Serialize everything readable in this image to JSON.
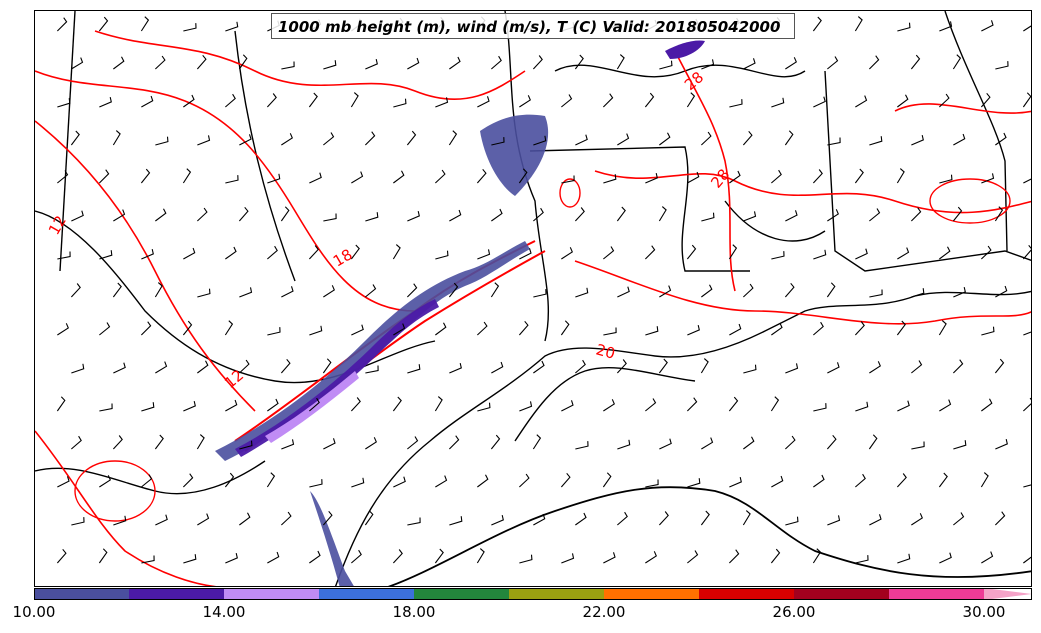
{
  "title": "1000 mb height (m), wind (m/s), T (C) Valid: 201805042000",
  "colorbar": {
    "colors": [
      "#4a4f9e",
      "#4b1aa6",
      "#c08cf5",
      "#3c70dc",
      "#23863c",
      "#9aa011",
      "#ff7000",
      "#d80000",
      "#a2001e",
      "#ee3b96",
      "#f5a3c8"
    ],
    "tick_labels": [
      "10.00",
      "14.00",
      "18.00",
      "22.00",
      "26.00",
      "30.00"
    ]
  },
  "contour_labels": [
    "28",
    "28",
    "18",
    "12",
    "12",
    "20"
  ],
  "colors": {
    "temperature_contour": "#ff0000",
    "height_contour": "#000000"
  }
}
